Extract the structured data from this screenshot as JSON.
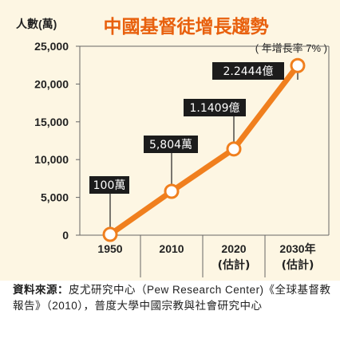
{
  "header": {
    "ylabel": "人數(萬)",
    "title": "中國基督徒增長趨勢",
    "subtitle": "( 年增長率 7% )"
  },
  "colors": {
    "line": "#f07f1e",
    "title": "#e8600d",
    "label_bg": "#1c1c1c",
    "label_text": "#ffffff",
    "background": "#fdf6e3"
  },
  "chart_data": {
    "type": "line",
    "title": "中國基督徒增長趨勢",
    "subtitle": "( 年增長率 7% )",
    "ylabel": "人數(萬)",
    "xlabel": "",
    "ylim": [
      0,
      25000
    ],
    "yticks": [
      0,
      5000,
      10000,
      15000,
      20000,
      25000
    ],
    "ytick_labels": [
      "0",
      "5,000",
      "10,000",
      "15,000",
      "20,000",
      "25,000"
    ],
    "categories": [
      "1950",
      "2010",
      "2020",
      "2030年"
    ],
    "category_sublabels": [
      "",
      "",
      "(估計)",
      "(估計)"
    ],
    "series": [
      {
        "values": [
          100,
          5804,
          11409,
          22444
        ]
      }
    ],
    "data_labels": [
      "100萬",
      "5,804萬",
      "1.1409億",
      "2.2444億"
    ],
    "grid": false
  },
  "source": {
    "label": "資料來源：",
    "text": "皮尤研究中心（Pew Research Center)《全球基督教報告》（2010），普度大學中國宗教與社會研究中心"
  }
}
